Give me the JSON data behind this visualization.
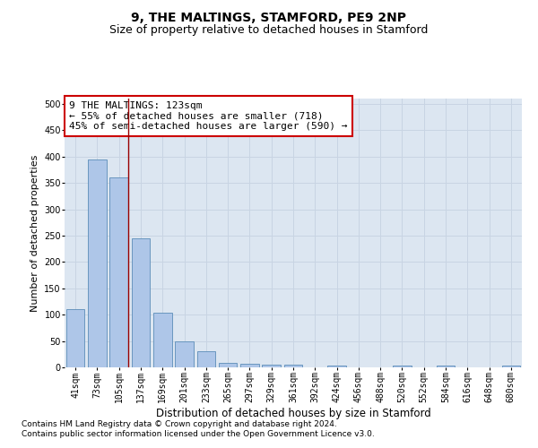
{
  "title": "9, THE MALTINGS, STAMFORD, PE9 2NP",
  "subtitle": "Size of property relative to detached houses in Stamford",
  "xlabel": "Distribution of detached houses by size in Stamford",
  "ylabel": "Number of detached properties",
  "categories": [
    "41sqm",
    "73sqm",
    "105sqm",
    "137sqm",
    "169sqm",
    "201sqm",
    "233sqm",
    "265sqm",
    "297sqm",
    "329sqm",
    "361sqm",
    "392sqm",
    "424sqm",
    "456sqm",
    "488sqm",
    "520sqm",
    "552sqm",
    "584sqm",
    "616sqm",
    "648sqm",
    "680sqm"
  ],
  "values": [
    110,
    395,
    360,
    244,
    104,
    50,
    30,
    8,
    6,
    5,
    5,
    0,
    3,
    0,
    0,
    3,
    0,
    3,
    0,
    0,
    3
  ],
  "bar_color": "#aec6e8",
  "bar_edge_color": "#5b8db8",
  "vline_bar_index": 2,
  "property_sqm": 123,
  "annotation_text": "9 THE MALTINGS: 123sqm\n← 55% of detached houses are smaller (718)\n45% of semi-detached houses are larger (590) →",
  "annotation_box_color": "#ffffff",
  "annotation_box_edge_color": "#cc0000",
  "vline_color": "#990000",
  "ylim": [
    0,
    510
  ],
  "yticks": [
    0,
    50,
    100,
    150,
    200,
    250,
    300,
    350,
    400,
    450,
    500
  ],
  "grid_color": "#c8d4e3",
  "background_color": "#dce6f1",
  "footnote1": "Contains HM Land Registry data © Crown copyright and database right 2024.",
  "footnote2": "Contains public sector information licensed under the Open Government Licence v3.0.",
  "title_fontsize": 10,
  "subtitle_fontsize": 9,
  "xlabel_fontsize": 8.5,
  "ylabel_fontsize": 8,
  "tick_fontsize": 7,
  "annotation_fontsize": 8,
  "footnote_fontsize": 6.5
}
